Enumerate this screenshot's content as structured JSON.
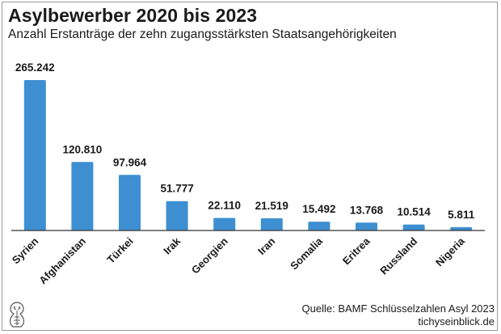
{
  "title": "Asylbewerber 2020 bis 2023",
  "subtitle": "Anzahl Erstanträge der zehn zugangsstärksten Staatsangehörigkeiten",
  "source": "Quelle: BAMF Schlüsselzahlen Asyl 2023",
  "brand": "tichyseinblick.de",
  "colors": {
    "bar": "#3d8fd1",
    "axis": "#333333"
  },
  "chart_data": {
    "type": "bar",
    "title": "Asylbewerber 2020 bis 2023",
    "subtitle": "Anzahl Erstanträge der zehn zugangsstärksten Staatsangehörigkeiten",
    "categories": [
      "Syrien",
      "Afghanistan",
      "Türkei",
      "Irak",
      "Georgien",
      "Iran",
      "Somalia",
      "Eritrea",
      "Russland",
      "Nigeria"
    ],
    "values": [
      265242,
      120810,
      97964,
      51777,
      22110,
      21519,
      15492,
      13768,
      10514,
      5811
    ],
    "value_labels": [
      "265.242",
      "120.810",
      "97.964",
      "51.777",
      "22.110",
      "21.519",
      "15.492",
      "13.768",
      "10.514",
      "5.811"
    ],
    "xlabel": "",
    "ylabel": "",
    "ylim": [
      0,
      265242
    ],
    "grid": false,
    "legend": "none"
  }
}
